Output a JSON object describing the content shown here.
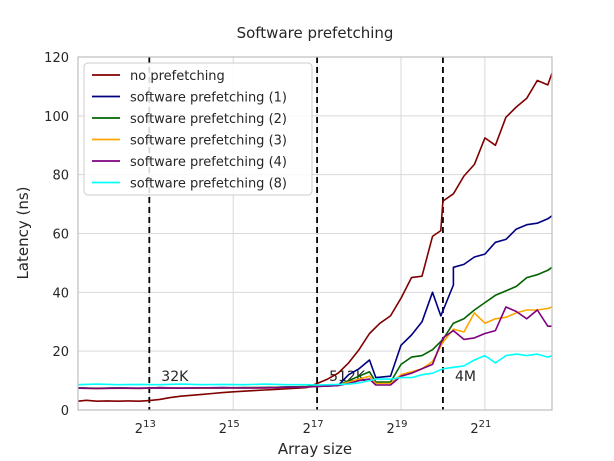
{
  "chart_data": {
    "type": "line",
    "title": "Software prefetching",
    "xlabel": "Array size",
    "ylabel": "Latency (ns)",
    "x_scale": "log2",
    "xlim_log2": [
      11.3,
      22.6
    ],
    "ylim": [
      0,
      120
    ],
    "grid": true,
    "legend_placement": "upper-left",
    "y_ticks": [
      "0",
      "20",
      "40",
      "60",
      "80",
      "100",
      "120"
    ],
    "x_ticks": [
      {
        "base": "2",
        "exp": "13",
        "log2": 13
      },
      {
        "base": "2",
        "exp": "15",
        "log2": 15
      },
      {
        "base": "2",
        "exp": "17",
        "log2": 17
      },
      {
        "base": "2",
        "exp": "19",
        "log2": 19
      },
      {
        "base": "2",
        "exp": "21",
        "log2": 21
      }
    ],
    "vlines": [
      {
        "log2": 13,
        "label": "32K"
      },
      {
        "log2": 17,
        "label": "512K"
      },
      {
        "log2": 20,
        "label": "4M"
      }
    ],
    "series": [
      {
        "name": "no prefetching",
        "color": "#800000",
        "points": [
          [
            11.3,
            3.0
          ],
          [
            11.5,
            3.3
          ],
          [
            11.75,
            3.0
          ],
          [
            12.0,
            3.1
          ],
          [
            12.25,
            3.0
          ],
          [
            12.5,
            3.1
          ],
          [
            12.75,
            3.0
          ],
          [
            13.0,
            3.2
          ],
          [
            13.25,
            3.6
          ],
          [
            13.5,
            4.2
          ],
          [
            13.75,
            4.7
          ],
          [
            14.0,
            5.0
          ],
          [
            14.25,
            5.3
          ],
          [
            14.5,
            5.6
          ],
          [
            14.75,
            5.9
          ],
          [
            15.0,
            6.2
          ],
          [
            15.25,
            6.4
          ],
          [
            15.5,
            6.6
          ],
          [
            15.75,
            6.8
          ],
          [
            16.0,
            7.0
          ],
          [
            16.25,
            7.2
          ],
          [
            16.5,
            7.4
          ],
          [
            16.75,
            7.6
          ],
          [
            17.0,
            9.0
          ],
          [
            17.25,
            10.5
          ],
          [
            17.5,
            12.5
          ],
          [
            17.75,
            16.0
          ],
          [
            18.0,
            20.5
          ],
          [
            18.25,
            26.0
          ],
          [
            18.5,
            29.5
          ],
          [
            18.75,
            32.0
          ],
          [
            19.0,
            38.0
          ],
          [
            19.25,
            45.0
          ],
          [
            19.5,
            45.5
          ],
          [
            19.75,
            59.0
          ],
          [
            19.95,
            61.0
          ],
          [
            20.0,
            71.0
          ],
          [
            20.25,
            73.5
          ],
          [
            20.5,
            79.5
          ],
          [
            20.75,
            83.5
          ],
          [
            21.0,
            92.5
          ],
          [
            21.25,
            90.0
          ],
          [
            21.5,
            99.5
          ],
          [
            21.75,
            103.0
          ],
          [
            22.0,
            106.0
          ],
          [
            22.25,
            112.0
          ],
          [
            22.5,
            110.5
          ],
          [
            22.6,
            114.5
          ]
        ]
      },
      {
        "name": "software prefetching (1)",
        "color": "#000080",
        "points": [
          [
            11.3,
            7.5
          ],
          [
            11.75,
            7.3
          ],
          [
            12.25,
            7.5
          ],
          [
            12.75,
            7.3
          ],
          [
            13.25,
            7.6
          ],
          [
            13.75,
            7.4
          ],
          [
            14.25,
            7.5
          ],
          [
            14.75,
            7.6
          ],
          [
            15.25,
            7.5
          ],
          [
            15.75,
            7.6
          ],
          [
            16.25,
            7.8
          ],
          [
            16.75,
            7.9
          ],
          [
            17.0,
            8.0
          ],
          [
            17.5,
            8.3
          ],
          [
            17.75,
            12.0
          ],
          [
            18.0,
            14.0
          ],
          [
            18.25,
            17.0
          ],
          [
            18.4,
            11.0
          ],
          [
            18.75,
            11.5
          ],
          [
            19.0,
            22.0
          ],
          [
            19.25,
            25.5
          ],
          [
            19.5,
            30.0
          ],
          [
            19.75,
            40.0
          ],
          [
            19.95,
            32.0
          ],
          [
            20.25,
            42.5
          ],
          [
            20.25,
            48.5
          ],
          [
            20.5,
            49.5
          ],
          [
            20.75,
            52.0
          ],
          [
            21.0,
            53.0
          ],
          [
            21.25,
            57.0
          ],
          [
            21.5,
            58.0
          ],
          [
            21.75,
            61.5
          ],
          [
            22.0,
            63.0
          ],
          [
            22.25,
            63.5
          ],
          [
            22.5,
            65.0
          ],
          [
            22.6,
            66.0
          ]
        ]
      },
      {
        "name": "software prefetching (2)",
        "color": "#006400",
        "points": [
          [
            11.3,
            7.5
          ],
          [
            11.75,
            7.4
          ],
          [
            12.25,
            7.5
          ],
          [
            12.75,
            7.4
          ],
          [
            13.25,
            7.5
          ],
          [
            13.75,
            7.4
          ],
          [
            14.25,
            7.5
          ],
          [
            14.75,
            7.5
          ],
          [
            15.25,
            7.6
          ],
          [
            15.75,
            7.6
          ],
          [
            16.25,
            7.8
          ],
          [
            16.75,
            8.0
          ],
          [
            17.0,
            8.2
          ],
          [
            17.5,
            8.4
          ],
          [
            17.75,
            10.0
          ],
          [
            18.0,
            11.5
          ],
          [
            18.25,
            13.0
          ],
          [
            18.4,
            9.5
          ],
          [
            18.75,
            9.5
          ],
          [
            19.0,
            15.5
          ],
          [
            19.25,
            18.0
          ],
          [
            19.5,
            18.5
          ],
          [
            19.75,
            20.5
          ],
          [
            20.0,
            24.0
          ],
          [
            20.25,
            29.5
          ],
          [
            20.5,
            31.0
          ],
          [
            20.75,
            34.0
          ],
          [
            21.0,
            36.5
          ],
          [
            21.25,
            39.0
          ],
          [
            21.5,
            40.5
          ],
          [
            21.75,
            42.0
          ],
          [
            22.0,
            45.0
          ],
          [
            22.25,
            46.0
          ],
          [
            22.5,
            47.5
          ],
          [
            22.6,
            48.5
          ]
        ]
      },
      {
        "name": "software prefetching (3)",
        "color": "#FFA500",
        "points": [
          [
            11.3,
            7.4
          ],
          [
            11.75,
            7.3
          ],
          [
            12.25,
            7.4
          ],
          [
            12.75,
            7.3
          ],
          [
            13.25,
            7.5
          ],
          [
            13.75,
            7.4
          ],
          [
            14.25,
            7.4
          ],
          [
            14.75,
            7.5
          ],
          [
            15.25,
            7.5
          ],
          [
            15.75,
            7.5
          ],
          [
            16.25,
            7.7
          ],
          [
            16.75,
            7.8
          ],
          [
            17.0,
            8.0
          ],
          [
            17.5,
            8.5
          ],
          [
            17.75,
            9.5
          ],
          [
            18.0,
            10.5
          ],
          [
            18.25,
            11.5
          ],
          [
            18.4,
            9.0
          ],
          [
            18.75,
            9.0
          ],
          [
            19.0,
            12.0
          ],
          [
            19.25,
            13.0
          ],
          [
            19.5,
            14.0
          ],
          [
            19.75,
            16.5
          ],
          [
            20.0,
            23.0
          ],
          [
            20.25,
            27.5
          ],
          [
            20.5,
            26.5
          ],
          [
            20.75,
            33.0
          ],
          [
            21.0,
            29.5
          ],
          [
            21.25,
            31.0
          ],
          [
            21.5,
            31.5
          ],
          [
            21.75,
            33.0
          ],
          [
            22.0,
            34.0
          ],
          [
            22.25,
            34.0
          ],
          [
            22.5,
            34.5
          ],
          [
            22.6,
            35.0
          ]
        ]
      },
      {
        "name": "software prefetching (4)",
        "color": "#800080",
        "points": [
          [
            11.3,
            7.4
          ],
          [
            11.75,
            7.3
          ],
          [
            12.25,
            7.4
          ],
          [
            12.75,
            7.4
          ],
          [
            13.25,
            7.5
          ],
          [
            13.75,
            7.4
          ],
          [
            14.25,
            7.5
          ],
          [
            14.75,
            7.5
          ],
          [
            15.25,
            7.5
          ],
          [
            15.75,
            7.5
          ],
          [
            16.25,
            7.7
          ],
          [
            16.75,
            7.8
          ],
          [
            17.0,
            8.0
          ],
          [
            17.5,
            8.3
          ],
          [
            17.75,
            9.0
          ],
          [
            18.0,
            10.0
          ],
          [
            18.25,
            10.5
          ],
          [
            18.4,
            8.5
          ],
          [
            18.75,
            8.5
          ],
          [
            19.0,
            11.5
          ],
          [
            19.25,
            12.5
          ],
          [
            19.5,
            14.0
          ],
          [
            19.75,
            15.5
          ],
          [
            20.0,
            24.5
          ],
          [
            20.25,
            27.0
          ],
          [
            20.5,
            24.0
          ],
          [
            20.75,
            24.5
          ],
          [
            21.0,
            26.0
          ],
          [
            21.25,
            27.0
          ],
          [
            21.5,
            35.0
          ],
          [
            21.75,
            33.5
          ],
          [
            22.0,
            31.0
          ],
          [
            22.25,
            34.0
          ],
          [
            22.5,
            28.5
          ],
          [
            22.6,
            28.5
          ]
        ]
      },
      {
        "name": "software prefetching (8)",
        "color": "#00FFFF",
        "points": [
          [
            11.3,
            8.6
          ],
          [
            11.75,
            8.8
          ],
          [
            12.25,
            8.6
          ],
          [
            12.75,
            8.7
          ],
          [
            13.25,
            8.6
          ],
          [
            13.75,
            8.8
          ],
          [
            14.25,
            8.6
          ],
          [
            14.75,
            8.7
          ],
          [
            15.25,
            8.6
          ],
          [
            15.75,
            8.8
          ],
          [
            16.25,
            8.6
          ],
          [
            16.75,
            8.6
          ],
          [
            17.0,
            8.5
          ],
          [
            17.5,
            8.7
          ],
          [
            17.75,
            8.8
          ],
          [
            18.0,
            9.2
          ],
          [
            18.25,
            10.0
          ],
          [
            18.4,
            10.5
          ],
          [
            18.75,
            10.5
          ],
          [
            19.0,
            11.0
          ],
          [
            19.25,
            11.0
          ],
          [
            19.5,
            12.0
          ],
          [
            19.75,
            12.5
          ],
          [
            20.0,
            14.0
          ],
          [
            20.25,
            14.5
          ],
          [
            20.5,
            15.0
          ],
          [
            20.75,
            17.0
          ],
          [
            21.0,
            18.5
          ],
          [
            21.25,
            16.0
          ],
          [
            21.5,
            18.5
          ],
          [
            21.75,
            19.0
          ],
          [
            22.0,
            18.5
          ],
          [
            22.25,
            19.0
          ],
          [
            22.5,
            18.0
          ],
          [
            22.6,
            18.5
          ]
        ]
      }
    ]
  }
}
